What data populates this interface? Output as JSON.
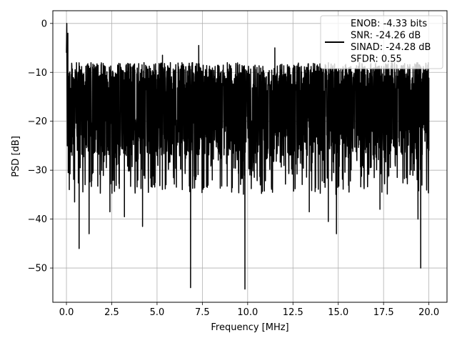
{
  "chart_data": {
    "type": "line",
    "title": "",
    "xlabel": "Frequency [MHz]",
    "ylabel": "PSD [dB]",
    "xlim": [
      -0.75,
      21.0
    ],
    "ylim": [
      -57.0,
      2.6
    ],
    "xticks": [
      0.0,
      2.5,
      5.0,
      7.5,
      10.0,
      12.5,
      15.0,
      17.5,
      20.0
    ],
    "xtick_labels": [
      "0.0",
      "2.5",
      "5.0",
      "7.5",
      "10.0",
      "12.5",
      "15.0",
      "17.5",
      "20.0"
    ],
    "yticks": [
      0,
      -10,
      -20,
      -30,
      -40,
      -50
    ],
    "ytick_labels": [
      "0",
      "−10",
      "−20",
      "−30",
      "−40",
      "−50"
    ],
    "grid": true,
    "legend": {
      "placement": "upper-right",
      "lines": [
        "ENOB: -4.33 bits",
        "SNR: -24.26 dB",
        "SINAD: -24.28 dB",
        "SFDR: 0.55"
      ]
    },
    "series": [
      {
        "color": "#000000",
        "noise_floor": {
          "x_start": 0.05,
          "x_end": 20.0,
          "y_typical_min": -27,
          "y_typical_max": -8
        },
        "points": [
          {
            "x": 0.0,
            "y": -6
          },
          {
            "x": 0.02,
            "y": 0.0
          },
          {
            "x": 0.05,
            "y": -25
          },
          {
            "x": 0.08,
            "y": -2
          },
          {
            "x": 0.1,
            "y": -30.5
          },
          {
            "x": 0.45,
            "y": -36.5
          },
          {
            "x": 0.7,
            "y": -46
          },
          {
            "x": 1.25,
            "y": -43
          },
          {
            "x": 2.4,
            "y": -38.5
          },
          {
            "x": 3.2,
            "y": -39.5
          },
          {
            "x": 4.2,
            "y": -41.5
          },
          {
            "x": 5.3,
            "y": -6.5
          },
          {
            "x": 6.85,
            "y": -54
          },
          {
            "x": 7.3,
            "y": -4.5
          },
          {
            "x": 9.85,
            "y": -54.3
          },
          {
            "x": 11.5,
            "y": -5
          },
          {
            "x": 13.4,
            "y": -38.5
          },
          {
            "x": 14.45,
            "y": -40.5
          },
          {
            "x": 14.9,
            "y": -43
          },
          {
            "x": 17.3,
            "y": -38
          },
          {
            "x": 19.4,
            "y": -40
          },
          {
            "x": 19.55,
            "y": -50
          },
          {
            "x": 20.0,
            "y": -26
          }
        ]
      }
    ]
  }
}
